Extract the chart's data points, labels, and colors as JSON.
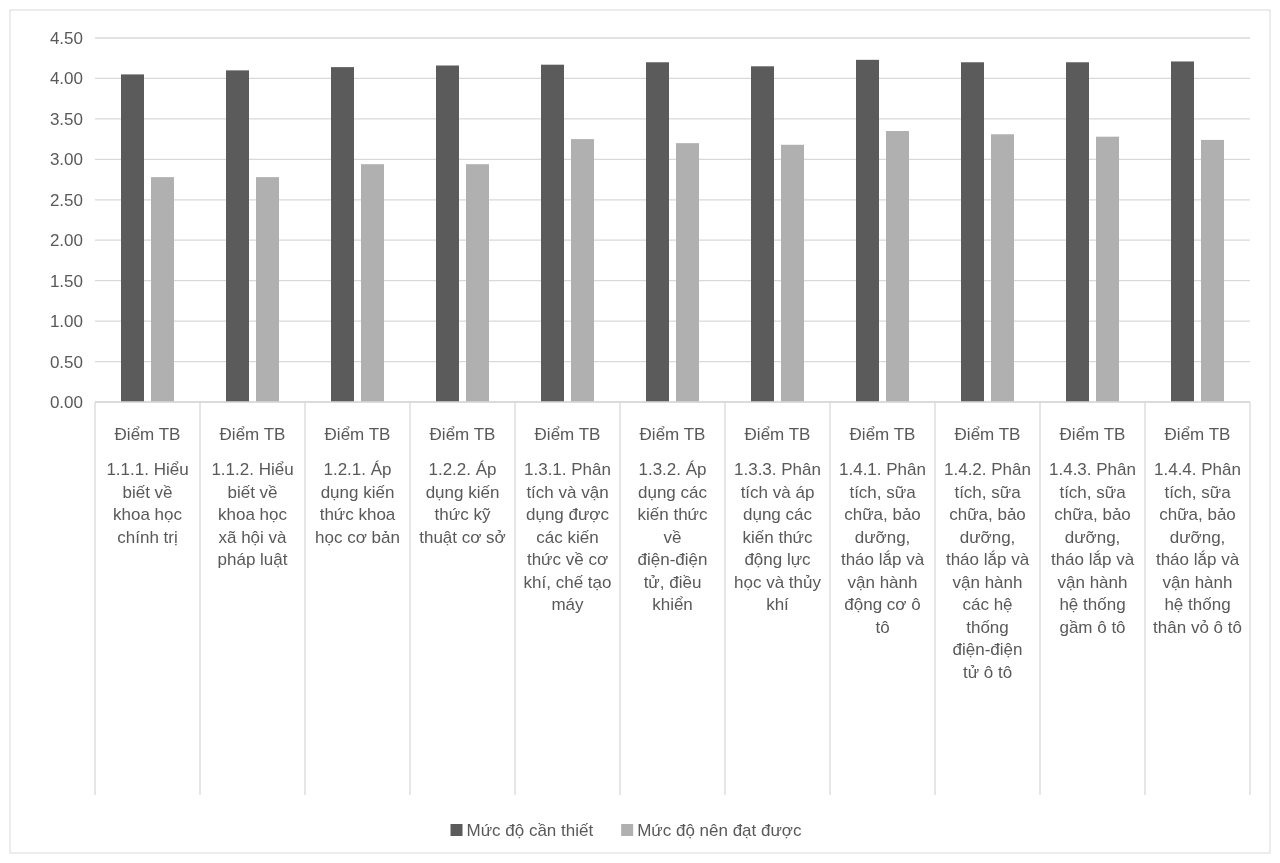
{
  "chart_data": {
    "type": "bar",
    "categories": [
      "1.1.1. Hiểu biết về khoa học chính trị",
      "1.1.2. Hiểu biết về khoa học xã hội và pháp luật",
      "1.2.1. Áp dụng kiến thức khoa học cơ bản",
      "1.2.2. Áp dụng kiến thức kỹ thuật cơ sở",
      "1.3.1. Phân tích và vận dụng được các kiến thức về cơ khí, chế tạo máy",
      "1.3.2. Áp dụng các kiến thức về điện-điện tử, điều khiển",
      "1.3.3. Phân tích và áp dụng các kiến thức động lực học và thủy khí",
      "1.4.1. Phân tích, sữa chữa, bảo dưỡng, tháo lắp và vận hành động cơ ô tô",
      "1.4.2. Phân tích, sữa chữa, bảo dưỡng, tháo lắp và vận hành các hệ thống điện-điện tử ô tô",
      "1.4.3. Phân tích, sữa chữa, bảo dưỡng, tháo lắp và vận hành hệ thống gầm ô tô",
      "1.4.4. Phân tích, sữa chữa, bảo dưỡng, tháo lắp và vận hành hệ thống thân vỏ ô tô"
    ],
    "series": [
      {
        "name": "Mức độ cần thiết",
        "color": "#5b5b5b",
        "values": [
          4.05,
          4.1,
          4.14,
          4.16,
          4.17,
          4.2,
          4.15,
          4.23,
          4.2,
          4.2,
          4.21
        ]
      },
      {
        "name": "Mức độ nên đạt được",
        "color": "#b0b0b0",
        "values": [
          2.78,
          2.78,
          2.94,
          2.94,
          3.25,
          3.2,
          3.18,
          3.35,
          3.31,
          3.28,
          3.24
        ]
      }
    ],
    "annotations": [
      "Điểm TB",
      "Điểm TB",
      "Điểm TB",
      "Điểm TB",
      "Điểm TB",
      "Điểm TB",
      "Điểm TB",
      "Điểm TB",
      "Điểm TB",
      "Điểm TB",
      "Điểm TB"
    ],
    "ylim": [
      0,
      4.5
    ],
    "yticks": [
      {
        "value": 0,
        "label": "0.00"
      },
      {
        "value": 0.5,
        "label": "0.50"
      },
      {
        "value": 1,
        "label": "1.00"
      },
      {
        "value": 1.5,
        "label": "1.50"
      },
      {
        "value": 2,
        "label": "2.00"
      },
      {
        "value": 2.5,
        "label": "2.50"
      },
      {
        "value": 3,
        "label": "3.00"
      },
      {
        "value": 3.5,
        "label": "3.50"
      },
      {
        "value": 4,
        "label": "4.00"
      },
      {
        "value": 4.5,
        "label": "4.50"
      }
    ],
    "grid": "y",
    "legend": "bottom"
  }
}
